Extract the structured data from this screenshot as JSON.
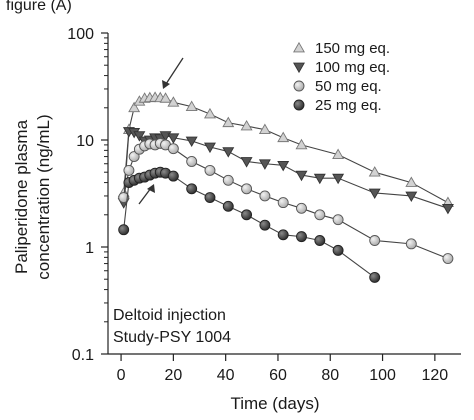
{
  "crop_top_text": "figure (A)",
  "chart_data": {
    "type": "line",
    "xlabel": "Time (days)",
    "ylabel": "Paliperidone plasma concentration (ng/mL)",
    "ylabel_lines": [
      "Paliperidone plasma",
      "concentration (ng/mL)"
    ],
    "yscale": "log",
    "xlim": [
      -5,
      130
    ],
    "ylim": [
      0.1,
      100
    ],
    "x_ticks": [
      0,
      20,
      40,
      60,
      80,
      100,
      120
    ],
    "y_ticks": [
      0.1,
      1,
      10,
      100
    ],
    "y_tick_labels": [
      "0.1",
      "1",
      "10",
      "100"
    ],
    "grid": false,
    "legend_position": "top-right",
    "annotations": [
      "Deltoid injection",
      "Study-PSY 1004"
    ],
    "series": [
      {
        "name": "150 mg eq.",
        "marker": "triangle-up-open",
        "color": "#d2d2d2",
        "x": [
          1,
          3,
          5,
          7,
          9,
          11,
          13,
          15,
          17,
          20,
          27,
          34,
          41,
          48,
          55,
          62,
          69,
          83,
          97,
          111,
          125
        ],
        "y": [
          3.2,
          12.5,
          20.0,
          23.0,
          24.5,
          24.8,
          25.0,
          24.8,
          24.5,
          22.5,
          20.5,
          17.5,
          14.5,
          13.5,
          12.5,
          10.5,
          9.0,
          7.3,
          5.0,
          4.0,
          2.6
        ]
      },
      {
        "name": "100 mg eq.",
        "marker": "triangle-down",
        "color": "#555555",
        "x": [
          1,
          3,
          5,
          7,
          9,
          11,
          13,
          15,
          17,
          20,
          27,
          34,
          41,
          48,
          55,
          62,
          69,
          76,
          83,
          97,
          111,
          125
        ],
        "y": [
          2.6,
          12.0,
          11.8,
          11.0,
          9.8,
          10.0,
          10.5,
          10.3,
          11.0,
          10.5,
          9.8,
          8.6,
          7.8,
          6.3,
          6.0,
          5.8,
          4.7,
          4.4,
          4.4,
          3.2,
          3.0,
          2.3
        ]
      },
      {
        "name": "50 mg eq.",
        "marker": "circle-light",
        "color": "#c4c4c4",
        "x": [
          1,
          3,
          5,
          7,
          9,
          11,
          13,
          15,
          17,
          20,
          27,
          34,
          41,
          48,
          55,
          62,
          69,
          76,
          83,
          97,
          111,
          125
        ],
        "y": [
          2.9,
          5.2,
          7.0,
          8.2,
          8.8,
          9.2,
          9.0,
          9.3,
          9.0,
          8.3,
          6.3,
          5.2,
          4.2,
          3.5,
          3.0,
          2.6,
          2.3,
          2.0,
          1.8,
          1.15,
          1.07,
          0.78
        ]
      },
      {
        "name": "25 mg eq.",
        "marker": "circle-dark",
        "color": "#4a4a4a",
        "x": [
          1,
          3,
          5,
          7,
          9,
          11,
          13,
          15,
          17,
          20,
          27,
          34,
          41,
          48,
          55,
          62,
          69,
          76,
          83,
          97
        ],
        "y": [
          1.45,
          4.0,
          4.2,
          4.4,
          4.5,
          4.7,
          4.9,
          5.0,
          4.9,
          4.6,
          3.5,
          2.9,
          2.4,
          2.0,
          1.6,
          1.3,
          1.25,
          1.15,
          0.93,
          0.52
        ]
      }
    ]
  }
}
